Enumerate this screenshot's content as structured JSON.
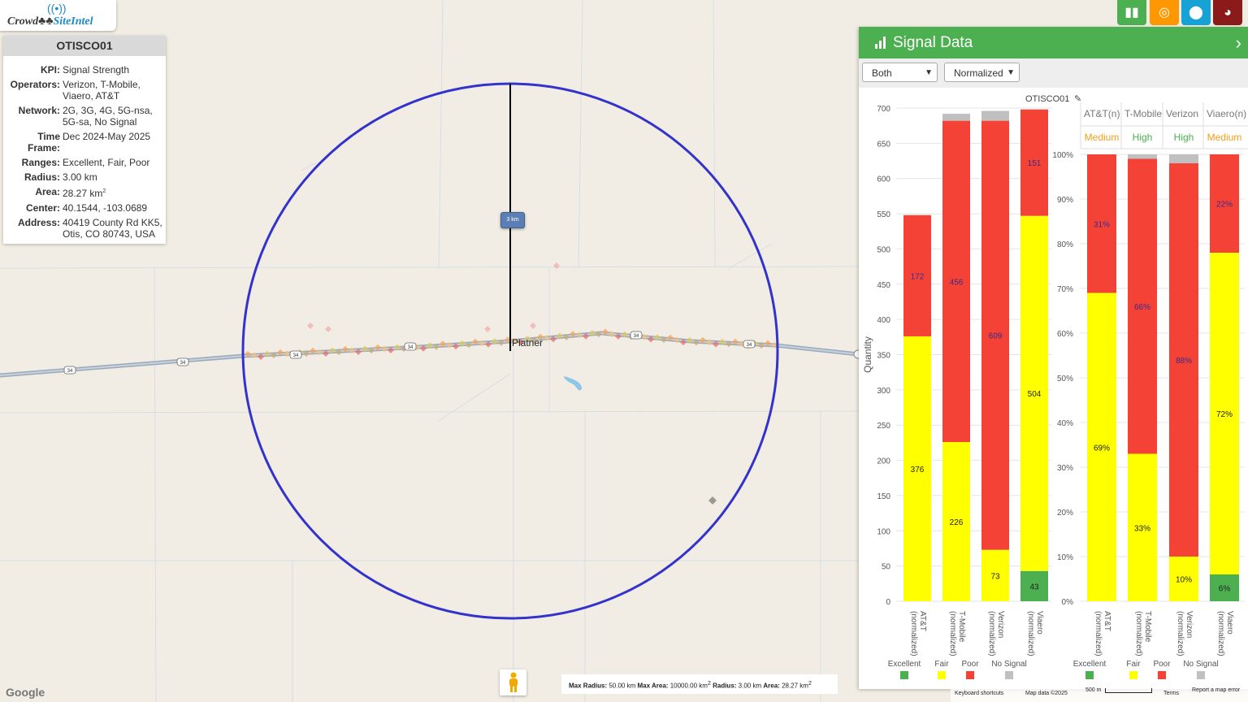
{
  "logo": {
    "part1": "Crowd",
    "part2": "SiteIntel"
  },
  "info": {
    "title": "OTISCO01",
    "rows": [
      {
        "k": "KPI:",
        "v": "Signal Strength"
      },
      {
        "k": "Operators:",
        "v": "Verizon, T-Mobile, Viaero, AT&T"
      },
      {
        "k": "Network:",
        "v": "2G, 3G, 4G, 5G-nsa, 5G-sa, No Signal"
      },
      {
        "k": "Time Frame:",
        "v": "Dec 2024-May 2025"
      },
      {
        "k": "Ranges:",
        "v": "Excellent, Fair, Poor"
      },
      {
        "k": "Radius:",
        "v": "3.00 km"
      },
      {
        "k": "Area:",
        "v": "28.27 km",
        "sup": "2"
      },
      {
        "k": "Center:",
        "v": "40.1544, -103.0689"
      },
      {
        "k": "Address:",
        "v": "40419 County Rd KK5, Otis, CO 80743, USA"
      }
    ]
  },
  "map": {
    "scale_label": "3 km",
    "town": "Platner",
    "route": "34",
    "google": "Google",
    "status": {
      "max_radius_k": "Max Radius:",
      "max_radius_v": "50.00 km",
      "max_area_k": "Max Area:",
      "max_area_v": "10000.00 km",
      "radius_k": "Radius:",
      "radius_v": "3.00 km",
      "area_k": "Area:",
      "area_v": "28.27 km",
      "sq": "2"
    },
    "footer": {
      "keyboard": "Keyboard shortcuts",
      "mapdata": "Map data ©2025",
      "scale": "500 m",
      "terms": "Terms",
      "report": "Report a map error"
    }
  },
  "toolbar": [
    {
      "icon": "bar-chart-icon",
      "color": "#4caf50"
    },
    {
      "icon": "target-icon",
      "color": "#ff9800"
    },
    {
      "icon": "map-pin-icon",
      "color": "#17a2d6"
    },
    {
      "icon": "globe-icon",
      "color": "#8b1a1a"
    }
  ],
  "panel": {
    "title": "Signal Data",
    "select1": "Both",
    "select2": "Normalized",
    "chart_title": "OTISCO01",
    "ylabel": "Quantity"
  },
  "colors": {
    "excellent": "#4caf50",
    "fair": "#ffff00",
    "poor": "#f44336",
    "nosignal": "#c0c0c0",
    "circle": "#3333cc"
  },
  "chart_data": [
    {
      "type": "bar",
      "stacked": true,
      "title": "OTISCO01",
      "ylabel": "Quantity",
      "ylim": [
        0,
        700
      ],
      "yticks": [
        "0",
        "50",
        "100",
        "150",
        "200",
        "250",
        "300",
        "350",
        "400",
        "450",
        "500",
        "550",
        "600",
        "650",
        "700"
      ],
      "categories": [
        "AT&T (normalized)",
        "T-Mobile (normalized)",
        "Verizon (normalized)",
        "Viaero (normalized)"
      ],
      "series": [
        {
          "name": "Excellent",
          "values": [
            0,
            0,
            0,
            43
          ],
          "labels": [
            "",
            "",
            "",
            "43"
          ]
        },
        {
          "name": "Fair",
          "values": [
            376,
            226,
            73,
            504
          ],
          "labels": [
            "376",
            "226",
            "73",
            "504"
          ]
        },
        {
          "name": "Poor",
          "values": [
            172,
            456,
            609,
            151
          ],
          "labels": [
            "172",
            "456",
            "609",
            "151"
          ]
        },
        {
          "name": "No Signal",
          "values": [
            0,
            10,
            14,
            0
          ],
          "labels": [
            "",
            "",
            "",
            ""
          ]
        }
      ]
    },
    {
      "type": "bar",
      "stacked": true,
      "ylim": [
        0,
        100
      ],
      "yticks": [
        "0%",
        "10%",
        "20%",
        "30%",
        "40%",
        "50%",
        "60%",
        "70%",
        "80%",
        "90%",
        "100%"
      ],
      "headers": [
        "AT&T",
        "T-Mobile",
        "Verizon",
        "Viaero"
      ],
      "header_sup": [
        "(n)",
        "",
        "",
        "(n)"
      ],
      "levels": [
        {
          "text": "Medium",
          "color": "#f59c1a"
        },
        {
          "text": "High",
          "color": "#4caf50"
        },
        {
          "text": "High",
          "color": "#4caf50"
        },
        {
          "text": "Medium",
          "color": "#f59c1a"
        }
      ],
      "categories": [
        "AT&T (normalized)",
        "T-Mobile (normalized)",
        "Verizon (normalized)",
        "Viaero (normalized)"
      ],
      "series": [
        {
          "name": "Excellent",
          "values": [
            0,
            0,
            0,
            6
          ],
          "labels": [
            "",
            "",
            "",
            "6%"
          ]
        },
        {
          "name": "Fair",
          "values": [
            69,
            33,
            10,
            72
          ],
          "labels": [
            "69%",
            "33%",
            "10%",
            "72%"
          ]
        },
        {
          "name": "Poor",
          "values": [
            31,
            66,
            88,
            22
          ],
          "labels": [
            "31%",
            "66%",
            "88%",
            "22%"
          ]
        },
        {
          "name": "No Signal",
          "values": [
            0,
            1.4,
            2,
            0
          ],
          "labels": [
            "",
            "",
            "",
            ""
          ]
        }
      ]
    }
  ]
}
